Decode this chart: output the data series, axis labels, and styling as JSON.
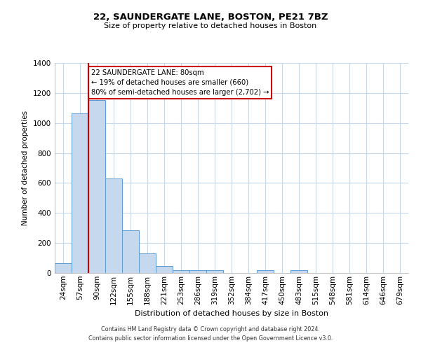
{
  "title": "22, SAUNDERGATE LANE, BOSTON, PE21 7BZ",
  "subtitle": "Size of property relative to detached houses in Boston",
  "xlabel": "Distribution of detached houses by size in Boston",
  "ylabel": "Number of detached properties",
  "bin_labels": [
    "24sqm",
    "57sqm",
    "90sqm",
    "122sqm",
    "155sqm",
    "188sqm",
    "221sqm",
    "253sqm",
    "286sqm",
    "319sqm",
    "352sqm",
    "384sqm",
    "417sqm",
    "450sqm",
    "483sqm",
    "515sqm",
    "548sqm",
    "581sqm",
    "614sqm",
    "646sqm",
    "679sqm"
  ],
  "bar_heights": [
    65,
    1065,
    1155,
    630,
    285,
    130,
    48,
    20,
    20,
    18,
    0,
    0,
    18,
    0,
    18,
    0,
    0,
    0,
    0,
    0,
    0
  ],
  "bar_color": "#c5d8ed",
  "bar_edge_color": "#5b9bd5",
  "vline_color": "#cc0000",
  "vline_bar_index": 1,
  "annotation_text": "22 SAUNDERGATE LANE: 80sqm\n← 19% of detached houses are smaller (660)\n80% of semi-detached houses are larger (2,702) →",
  "annotation_box_color": "#ffffff",
  "annotation_box_edge": "#cc0000",
  "ylim": [
    0,
    1400
  ],
  "yticks": [
    0,
    200,
    400,
    600,
    800,
    1000,
    1200,
    1400
  ],
  "footer_line1": "Contains HM Land Registry data © Crown copyright and database right 2024.",
  "footer_line2": "Contains public sector information licensed under the Open Government Licence v3.0.",
  "bg_color": "#ffffff",
  "grid_color": "#c8d8e8"
}
